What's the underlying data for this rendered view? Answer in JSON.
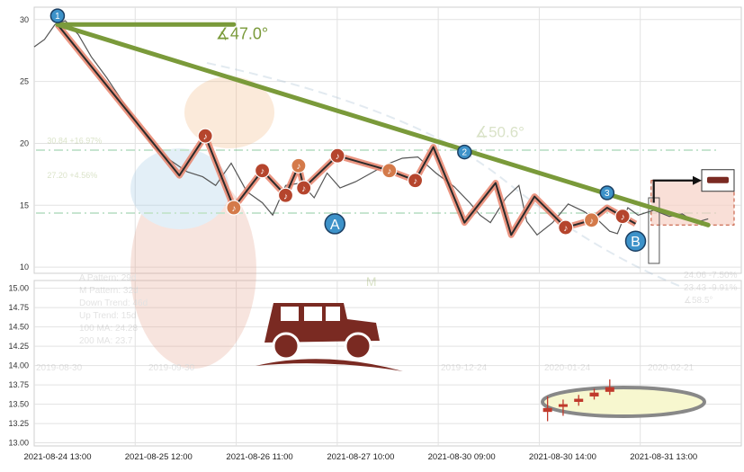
{
  "chart_data": {
    "type": "line",
    "top_panel": {
      "y_ticks": [
        10,
        15,
        20,
        25,
        30
      ],
      "ylim": [
        9.5,
        31
      ],
      "price_line": [
        [
          0,
          27.8
        ],
        [
          0.4,
          28.4
        ],
        [
          0.8,
          29.6
        ],
        [
          1.2,
          29.9
        ],
        [
          1.7,
          28.8
        ],
        [
          2.2,
          27.0
        ],
        [
          2.8,
          25.3
        ],
        [
          3.4,
          23.4
        ],
        [
          4.0,
          21.6
        ],
        [
          4.6,
          19.7
        ],
        [
          5.2,
          18.7
        ],
        [
          5.9,
          17.7
        ],
        [
          6.5,
          17.3
        ],
        [
          7.0,
          16.6
        ],
        [
          7.6,
          18.4
        ],
        [
          8.2,
          16.1
        ],
        [
          8.8,
          15.2
        ],
        [
          9.2,
          14.2
        ],
        [
          9.7,
          16.6
        ],
        [
          10.3,
          16.8
        ],
        [
          10.8,
          15.6
        ],
        [
          11.3,
          17.6
        ],
        [
          11.8,
          16.4
        ],
        [
          12.4,
          16.9
        ],
        [
          13.0,
          17.6
        ],
        [
          13.6,
          18.3
        ],
        [
          14.2,
          18.8
        ],
        [
          14.8,
          18.9
        ],
        [
          15.5,
          17.6
        ],
        [
          16.2,
          16.5
        ],
        [
          16.8,
          15.2
        ],
        [
          17.2,
          14.2
        ],
        [
          17.6,
          13.6
        ],
        [
          18.2,
          15.6
        ],
        [
          18.7,
          16.6
        ],
        [
          19.0,
          13.7
        ],
        [
          19.4,
          12.6
        ],
        [
          20.0,
          13.6
        ],
        [
          20.6,
          15.1
        ],
        [
          21.2,
          14.5
        ],
        [
          21.8,
          13.7
        ],
        [
          22.2,
          12.9
        ],
        [
          22.5,
          12.7
        ],
        [
          22.9,
          14.8
        ],
        [
          23.3,
          14.2
        ],
        [
          23.9,
          14.6
        ],
        [
          24.5,
          14.1
        ],
        [
          25.0,
          14.3
        ],
        [
          25.5,
          13.6
        ],
        [
          26.0,
          13.9
        ]
      ],
      "zigzag": [
        [
          0.9,
          29.6
        ],
        [
          5.6,
          17.4
        ],
        [
          6.6,
          20.6
        ],
        [
          7.7,
          14.8
        ],
        [
          8.8,
          17.8
        ],
        [
          9.7,
          15.8
        ],
        [
          10.2,
          18.2
        ],
        [
          10.4,
          16.4
        ],
        [
          11.7,
          19.0
        ],
        [
          13.7,
          17.8
        ],
        [
          14.7,
          17.0
        ],
        [
          15.4,
          19.7
        ],
        [
          16.6,
          13.6
        ],
        [
          17.8,
          16.8
        ],
        [
          18.4,
          12.6
        ],
        [
          19.3,
          15.7
        ],
        [
          20.5,
          13.2
        ],
        [
          21.5,
          13.8
        ],
        [
          22.1,
          14.8
        ],
        [
          22.7,
          14.1
        ],
        [
          23.2,
          13.5
        ]
      ],
      "trendline": {
        "from": [
          0.9,
          29.6
        ],
        "to": [
          26.0,
          13.4
        ],
        "angle_label": "∡47.0°"
      },
      "pivot_markers": [
        {
          "label": "1",
          "x": 0.9,
          "y": 30.3,
          "kind": "blue"
        },
        {
          "label": "2",
          "x": 16.6,
          "y": 19.3,
          "kind": "blue"
        },
        {
          "label": "3",
          "x": 22.1,
          "y": 16.0,
          "kind": "blue"
        },
        {
          "label": "A",
          "x": 11.6,
          "y": 13.5,
          "kind": "blue-large"
        },
        {
          "label": "B",
          "x": 23.2,
          "y": 12.1,
          "kind": "blue-large"
        }
      ],
      "highlight_box": {
        "x": [
          23.8,
          27.0
        ],
        "y": [
          13.4,
          17.0
        ]
      },
      "icon_label": "sedan-badge",
      "ghost_texts": [
        {
          "text": "∡50.6°",
          "x": 17.0,
          "y": 20.5,
          "size": 17
        },
        {
          "text": "30.84 +16.97%",
          "x": 0.5,
          "y": 20.0,
          "size": 9
        },
        {
          "text": "27.20 +4.56%",
          "x": 0.5,
          "y": 17.2,
          "size": 9
        },
        {
          "text": "M",
          "x": 12.8,
          "y": 8.5,
          "size": 14
        }
      ]
    },
    "bottom_panel": {
      "y_ticks": [
        13.0,
        13.25,
        13.5,
        13.75,
        14.0,
        14.25,
        14.5,
        14.75,
        15.0
      ],
      "ylim": [
        12.96,
        15.1
      ],
      "x_tick_labels": [
        "2021-08-24 13:00",
        "2021-08-25 12:00",
        "2021-08-26 11:00",
        "2021-08-27 10:00",
        "2021-08-30 09:00",
        "2021-08-30 14:00",
        "2021-08-31 13:00"
      ],
      "candles": [
        {
          "x": 0.7,
          "open": 13.45,
          "close": 13.4,
          "high": 13.6,
          "low": 13.28
        },
        {
          "x": 1.3,
          "open": 13.5,
          "close": 13.47,
          "high": 13.56,
          "low": 13.35
        },
        {
          "x": 1.9,
          "open": 13.53,
          "close": 13.57,
          "high": 13.62,
          "low": 13.48
        },
        {
          "x": 2.5,
          "open": 13.6,
          "close": 13.65,
          "high": 13.7,
          "low": 13.56
        },
        {
          "x": 3.1,
          "open": 13.72,
          "close": 13.66,
          "high": 13.82,
          "low": 13.62
        }
      ],
      "ghost_legend": [
        "A Pattern: 29d",
        "M Pattern: 32d",
        "Down Trend: 46d",
        "Up Trend: 15d",
        "100 MA: 24.28",
        "200 MA: 23.7"
      ],
      "ghost_right_labels": [
        "24.06 -7.50%",
        "23.43 -9.91%",
        "∡58.5°"
      ],
      "ghost_date_labels": [
        "2019-08-30",
        "2019-09-30",
        "2019-12-24",
        "2020-01-24",
        "2020-02-21"
      ]
    },
    "colors": {
      "trendline": "#7a9a3a",
      "zigzag_outer": "#e8826b",
      "zigzag_inner": "#2a2a2a",
      "marker_blue": "#3d92c9",
      "marker_red": "#b5452d",
      "marker_orange": "#d47a4a",
      "candle": "#c0392b",
      "oval_fill": "#f7f7cf",
      "oval_stroke": "#888888",
      "jeep": "#7a2a22"
    }
  }
}
